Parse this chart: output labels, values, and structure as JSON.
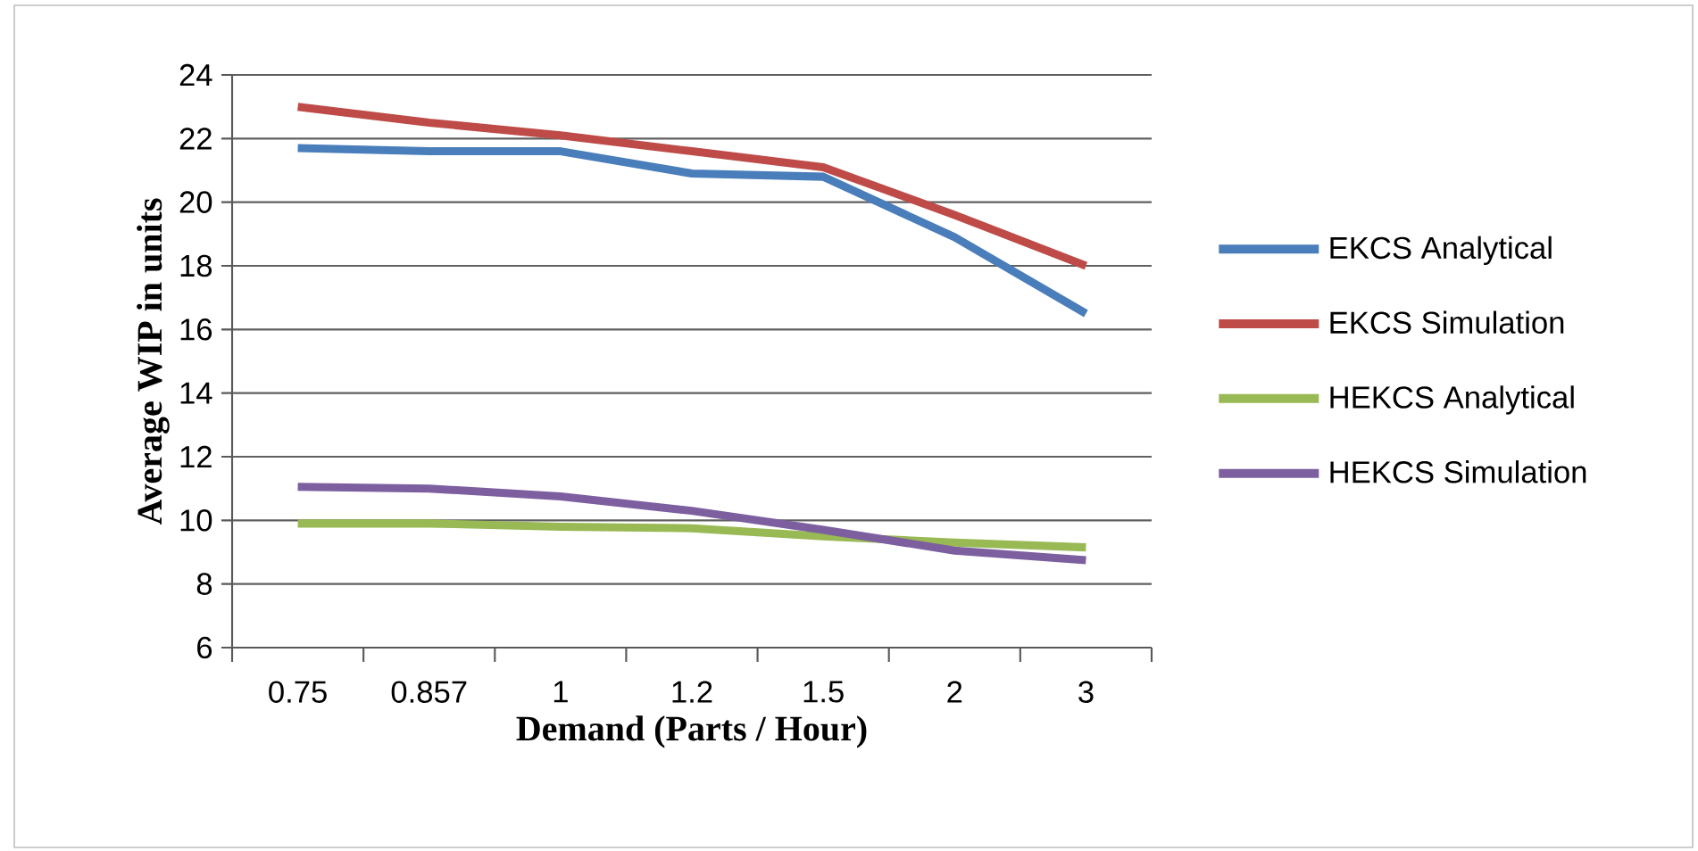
{
  "chart_data": {
    "type": "line",
    "xlabel": "Demand (Parts / Hour)",
    "ylabel": "Average WIP in units",
    "categories": [
      "0.75",
      "0.857",
      "1",
      "1.2",
      "1.5",
      "2",
      "3"
    ],
    "series": [
      {
        "name": "EKCS Analytical",
        "color": "#4a7ebb",
        "values": [
          21.7,
          21.6,
          21.6,
          20.9,
          20.8,
          18.9,
          16.5
        ]
      },
      {
        "name": "EKCS Simulation",
        "color": "#be4b48",
        "values": [
          23.0,
          22.5,
          22.1,
          21.6,
          21.1,
          19.6,
          18.0
        ]
      },
      {
        "name": "HEKCS Analytical",
        "color": "#98b954",
        "values": [
          9.9,
          9.9,
          9.8,
          9.75,
          9.5,
          9.3,
          9.15
        ]
      },
      {
        "name": "HEKCS Simulation",
        "color": "#7d5fa0",
        "values": [
          11.05,
          11.0,
          10.75,
          10.3,
          9.7,
          9.05,
          8.75
        ]
      }
    ],
    "ylim": [
      6,
      24
    ],
    "yticks": [
      6,
      8,
      10,
      12,
      14,
      16,
      18,
      20,
      22,
      24
    ],
    "grid": "y",
    "legend": "right"
  }
}
